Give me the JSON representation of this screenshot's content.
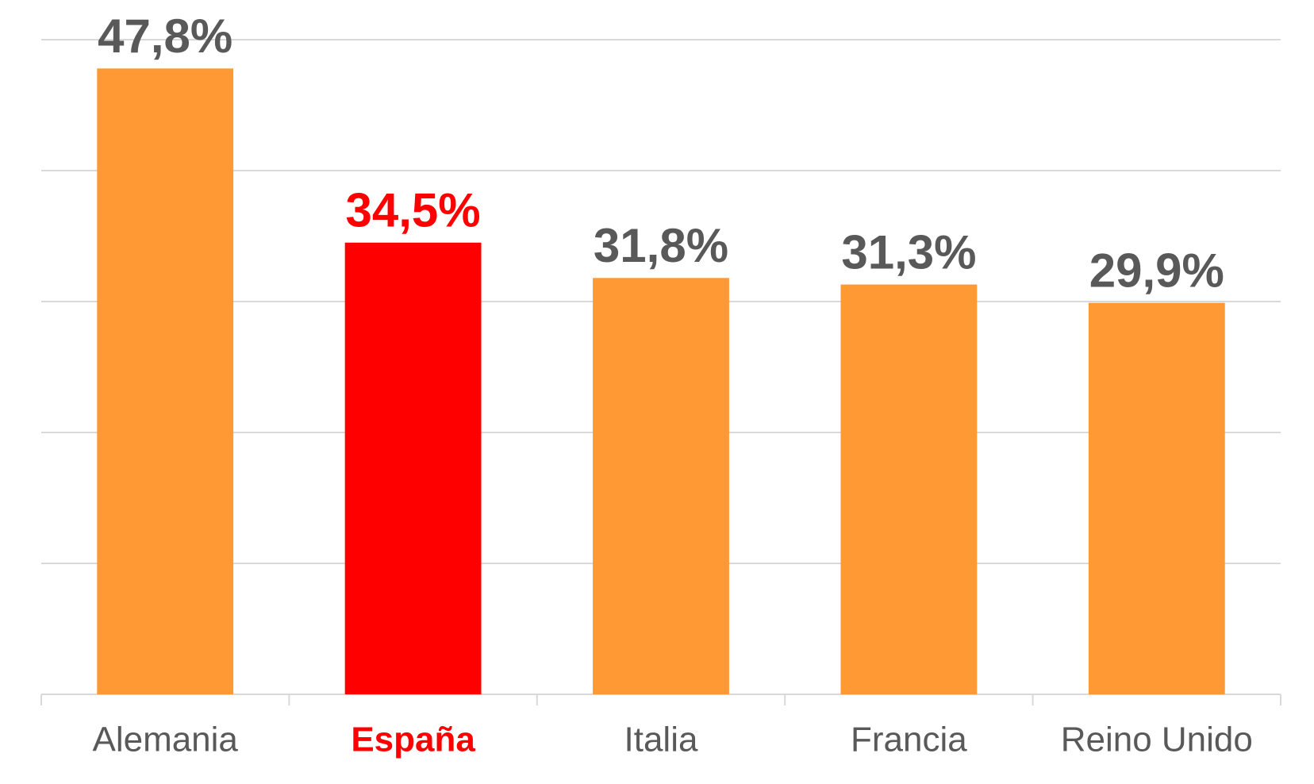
{
  "chart_data": {
    "type": "bar",
    "categories": [
      "Alemania",
      "España",
      "Italia",
      "Francia",
      "Reino Unido"
    ],
    "values": [
      47.8,
      34.5,
      31.8,
      31.3,
      29.9
    ],
    "value_labels": [
      "47,8%",
      "34,5%",
      "31,8%",
      "31,3%",
      "29,9%"
    ],
    "colors": [
      "#ff9933",
      "#ff0000",
      "#ff9933",
      "#ff9933",
      "#ff9933"
    ],
    "label_colors": [
      "#595959",
      "#ff0000",
      "#595959",
      "#595959",
      "#595959"
    ],
    "ylim": [
      0,
      50
    ],
    "yticks": [
      0,
      10,
      20,
      30,
      40,
      50
    ],
    "grid": true
  }
}
